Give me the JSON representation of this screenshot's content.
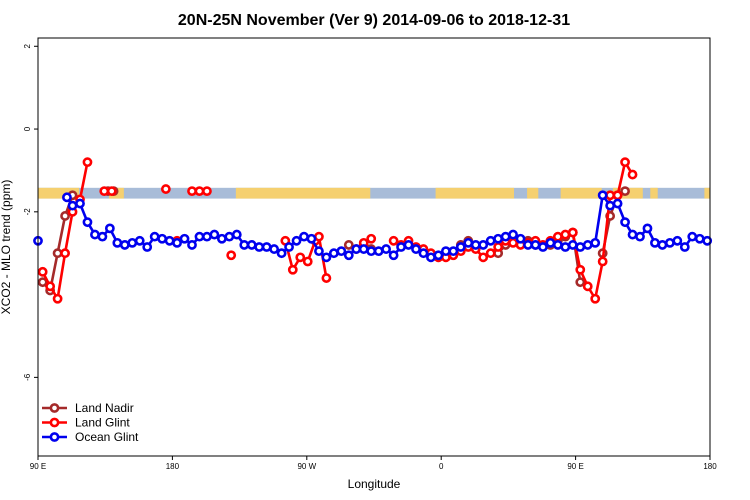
{
  "chart_data": {
    "type": "line",
    "title": "20N-25N November (Ver 9)   2014-09-06 to 2018-12-31",
    "xlabel": "Longitude",
    "ylabel": "XCO2 - MLO trend (ppm)",
    "xlim": [
      90,
      450
    ],
    "ylim": [
      -7.9,
      2.2
    ],
    "x_ticks": [
      {
        "value": 90,
        "label": "90 E"
      },
      {
        "value": 162,
        "label": "180"
      },
      {
        "value": 234,
        "label": "90 W"
      },
      {
        "value": 306,
        "label": "0"
      },
      {
        "value": 378,
        "label": "90 E"
      },
      {
        "value": 450,
        "label": "180"
      }
    ],
    "y_ticks": [
      {
        "value": 2,
        "label": "2"
      },
      {
        "value": 0,
        "label": "0"
      },
      {
        "value": -2,
        "label": "-2"
      },
      {
        "value": -6,
        "label": "-6"
      }
    ],
    "land_band": {
      "y_top": -1.42,
      "y_bottom": -1.68,
      "ocean_color": "#a8bcd8",
      "land_color": "#f5d070"
    },
    "legend": {
      "position": "bottom-left"
    },
    "series": [
      {
        "name": "Land Nadir",
        "color": "#a52a2a",
        "x": [
          92.5,
          96.5,
          100.5,
          104.5,
          108.5,
          127.5,
          130.5,
          256.5,
          260.5,
          264.5,
          268.5,
          312.5,
          316.5,
          320.5,
          336.5,
          340.5,
          344.5,
          348.5,
          352.5,
          356.5,
          364.5,
          368.5,
          372.5,
          376.5,
          380.5,
          392.5,
          396.5,
          400.5,
          404.5
        ],
        "y": [
          -3.7,
          -3.9,
          -3.0,
          -2.1,
          -1.6,
          -1.5,
          -1.5,
          -2.8,
          -2.9,
          -2.8,
          -2.9,
          -3.0,
          -2.8,
          -2.7,
          -3.0,
          -2.8,
          -2.7,
          -2.75,
          -2.7,
          -2.8,
          -2.8,
          -2.7,
          -2.6,
          -2.5,
          -3.7,
          -3.0,
          -2.1,
          -1.6,
          -1.5
        ]
      },
      {
        "name": "Land Glint",
        "color": "#ff0000",
        "x": [
          92.5,
          96.5,
          100.5,
          104.5,
          108.5,
          112.5,
          116.5,
          125.5,
          129.5,
          158.5,
          164.5,
          172.5,
          176.5,
          180.5,
          193.5,
          222.5,
          226.5,
          230.5,
          234.5,
          238.5,
          240.5,
          244.5,
          264.5,
          268.5,
          280.5,
          284.5,
          288.5,
          292.5,
          296.5,
          300.5,
          304.5,
          308.5,
          312.5,
          316.5,
          320.5,
          324.5,
          328.5,
          332.5,
          336.5,
          340.5,
          344.5,
          348.5,
          352.5,
          356.5,
          360.5,
          364.5,
          368.5,
          372.5,
          376.5,
          380.5,
          384.5,
          388.5,
          392.5,
          396.5,
          400.5,
          404.5,
          408.5
        ],
        "y": [
          -3.45,
          -3.8,
          -4.1,
          -3.0,
          -2.0,
          -1.7,
          -0.8,
          -1.5,
          -1.5,
          -1.45,
          -2.7,
          -1.5,
          -1.5,
          -1.5,
          -3.05,
          -2.7,
          -3.4,
          -3.1,
          -3.2,
          -2.7,
          -2.6,
          -3.6,
          -2.75,
          -2.65,
          -2.7,
          -2.8,
          -2.7,
          -2.85,
          -2.9,
          -3.0,
          -3.1,
          -3.1,
          -3.05,
          -2.95,
          -2.85,
          -2.9,
          -3.1,
          -3.0,
          -2.85,
          -2.7,
          -2.75,
          -2.8,
          -2.75,
          -2.7,
          -2.8,
          -2.7,
          -2.6,
          -2.55,
          -2.5,
          -3.4,
          -3.8,
          -4.1,
          -3.2,
          -1.6,
          -1.6,
          -0.8,
          -1.1
        ]
      },
      {
        "name": "Ocean Glint",
        "color": "#0000ee",
        "x": [
          90.0,
          105.5,
          108.5,
          112.5,
          116.5,
          120.5,
          124.5,
          128.5,
          132.5,
          136.5,
          140.5,
          144.5,
          148.5,
          152.5,
          156.5,
          160.5,
          164.5,
          168.5,
          172.5,
          176.5,
          180.5,
          184.5,
          188.5,
          192.5,
          196.5,
          200.5,
          204.5,
          208.5,
          212.5,
          216.5,
          220.5,
          224.5,
          228.5,
          232.5,
          236.5,
          240.5,
          244.5,
          248.5,
          252.5,
          256.5,
          260.5,
          264.5,
          268.5,
          272.5,
          276.5,
          280.5,
          284.5,
          288.5,
          292.5,
          296.5,
          300.5,
          304.5,
          308.5,
          312.5,
          316.5,
          320.5,
          324.5,
          328.5,
          332.5,
          336.5,
          340.5,
          344.5,
          348.5,
          352.5,
          356.5,
          360.5,
          364.5,
          368.5,
          372.5,
          376.5,
          380.5,
          384.5,
          388.5,
          392.5,
          396.5,
          400.5,
          404.5,
          408.5,
          412.5,
          416.5,
          420.5,
          424.5,
          428.5,
          432.5,
          436.5,
          440.5,
          444.5,
          448.5
        ],
        "y": [
          -2.7,
          -1.65,
          -1.85,
          -1.8,
          -2.25,
          -2.55,
          -2.6,
          -2.4,
          -2.75,
          -2.8,
          -2.75,
          -2.7,
          -2.85,
          -2.6,
          -2.65,
          -2.7,
          -2.75,
          -2.65,
          -2.8,
          -2.6,
          -2.6,
          -2.55,
          -2.65,
          -2.6,
          -2.55,
          -2.8,
          -2.8,
          -2.85,
          -2.85,
          -2.9,
          -3.0,
          -2.85,
          -2.7,
          -2.6,
          -2.65,
          -2.95,
          -3.1,
          -3.0,
          -2.95,
          -3.05,
          -2.9,
          -2.9,
          -2.95,
          -2.95,
          -2.9,
          -3.05,
          -2.85,
          -2.8,
          -2.9,
          -3.0,
          -3.1,
          -3.05,
          -2.95,
          -2.95,
          -2.85,
          -2.75,
          -2.8,
          -2.8,
          -2.7,
          -2.65,
          -2.6,
          -2.55,
          -2.65,
          -2.8,
          -2.8,
          -2.85,
          -2.75,
          -2.8,
          -2.85,
          -2.8,
          -2.85,
          -2.8,
          -2.75,
          -1.6,
          -1.85,
          -1.8,
          -2.25,
          -2.55,
          -2.6,
          -2.4,
          -2.75,
          -2.8,
          -2.75,
          -2.7,
          -2.85,
          -2.6,
          -2.65,
          -2.7
        ]
      }
    ]
  }
}
